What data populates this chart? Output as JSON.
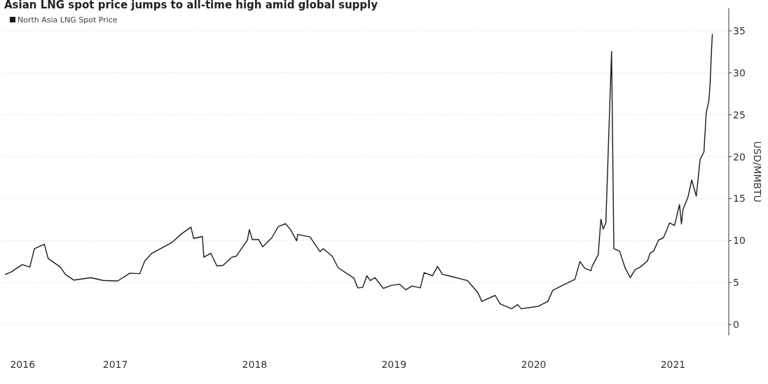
{
  "chart_data": {
    "type": "line",
    "title": "Asian LNG spot price jumps to all-time high amid global supply",
    "ylabel": "USD/MMBTU",
    "legend": "top left",
    "grid": "y",
    "line_style": "solid",
    "marker": "none",
    "xlim": [
      "2016-09-12",
      "2021-11-25"
    ],
    "xticks": [
      {
        "value": "2016-11-01",
        "label": "2016"
      },
      {
        "value": "2017-07-02",
        "label": "2017"
      },
      {
        "value": "2018-07-02",
        "label": "2018"
      },
      {
        "value": "2019-07-02",
        "label": "2019"
      },
      {
        "value": "2020-07-02",
        "label": "2020"
      },
      {
        "value": "2021-07-02",
        "label": "2021"
      }
    ],
    "ylim": [
      -1.3,
      37.7
    ],
    "yticks": [
      0,
      5,
      10,
      15,
      20,
      25,
      30,
      35
    ],
    "x": [
      "2016-09-17",
      "2016-10-02",
      "2016-10-31",
      "2016-11-20",
      "2016-12-02",
      "2016-12-28",
      "2017-01-07",
      "2017-02-08",
      "2017-02-21",
      "2017-03-15",
      "2017-04-29",
      "2017-05-31",
      "2017-07-08",
      "2017-08-09",
      "2017-09-04",
      "2017-09-17",
      "2017-10-06",
      "2017-11-27",
      "2017-12-22",
      "2018-01-16",
      "2018-01-23",
      "2018-02-15",
      "2018-02-19",
      "2018-03-09",
      "2018-03-25",
      "2018-04-10",
      "2018-05-03",
      "2018-05-15",
      "2018-06-13",
      "2018-06-18",
      "2018-06-26",
      "2018-07-12",
      "2018-07-23",
      "2018-08-16",
      "2018-09-02",
      "2018-09-21",
      "2018-10-04",
      "2018-10-20",
      "2018-10-23",
      "2018-11-24",
      "2018-12-20",
      "2018-12-29",
      "2019-01-21",
      "2019-02-06",
      "2019-03-19",
      "2019-03-29",
      "2019-04-11",
      "2019-04-22",
      "2019-05-01",
      "2019-05-13",
      "2019-06-04",
      "2019-06-24",
      "2019-07-16",
      "2019-08-02",
      "2019-08-18",
      "2019-09-09",
      "2019-09-19",
      "2019-10-11",
      "2019-10-24",
      "2019-11-06",
      "2019-11-22",
      "2020-01-10",
      "2020-02-07",
      "2020-02-17",
      "2020-03-23",
      "2020-04-05",
      "2020-05-05",
      "2020-05-21",
      "2020-05-30",
      "2020-07-14",
      "2020-08-08",
      "2020-08-21",
      "2020-09-15",
      "2020-10-18",
      "2020-10-31",
      "2020-11-13",
      "2020-11-29",
      "2020-12-02",
      "2020-12-18",
      "2020-12-25",
      "2020-12-31",
      "2021-01-07",
      "2021-01-22",
      "2021-01-28",
      "2021-02-12",
      "2021-02-27",
      "2021-03-12",
      "2021-03-25",
      "2021-04-07",
      "2021-04-26",
      "2021-05-03",
      "2021-05-12",
      "2021-05-25",
      "2021-06-07",
      "2021-06-23",
      "2021-07-06",
      "2021-07-19",
      "2021-07-24",
      "2021-07-28",
      "2021-08-10",
      "2021-08-20",
      "2021-09-01",
      "2021-09-11",
      "2021-09-21",
      "2021-09-27",
      "2021-10-04",
      "2021-10-07",
      "2021-10-08",
      "2021-10-11",
      "2021-10-13"
    ],
    "series": [
      {
        "name": "North Asia LNG Spot Price",
        "color": "#1a1a1a",
        "values": [
          5.96,
          6.26,
          7.13,
          6.84,
          9.03,
          9.56,
          7.86,
          6.84,
          5.96,
          5.29,
          5.58,
          5.24,
          5.18,
          6.11,
          6.05,
          7.57,
          8.5,
          9.76,
          10.79,
          11.6,
          10.26,
          10.49,
          8.01,
          8.5,
          6.98,
          7.04,
          8.01,
          8.15,
          10.05,
          11.31,
          10.11,
          10.14,
          9.26,
          10.34,
          11.66,
          12.01,
          11.31,
          9.97,
          10.73,
          10.43,
          8.68,
          9.03,
          8.15,
          6.75,
          5.52,
          4.36,
          4.42,
          5.81,
          5.24,
          5.58,
          4.3,
          4.65,
          4.8,
          4.13,
          4.59,
          4.36,
          6.17,
          5.81,
          6.93,
          5.96,
          5.81,
          5.24,
          3.78,
          2.75,
          3.47,
          2.46,
          1.87,
          2.37,
          1.87,
          2.16,
          2.75,
          4.07,
          4.65,
          5.38,
          7.51,
          6.69,
          6.4,
          6.93,
          8.3,
          12.54,
          11.37,
          12.1,
          32.55,
          9.03,
          8.74,
          6.69,
          5.58,
          6.55,
          6.84,
          7.57,
          8.5,
          8.74,
          10.05,
          10.34,
          12.1,
          11.8,
          14.29,
          11.97,
          13.7,
          15.16,
          17.21,
          15.31,
          19.69,
          20.57,
          25.25,
          26.7,
          28.6,
          29.62,
          32.84,
          34.59
        ]
      }
    ]
  }
}
